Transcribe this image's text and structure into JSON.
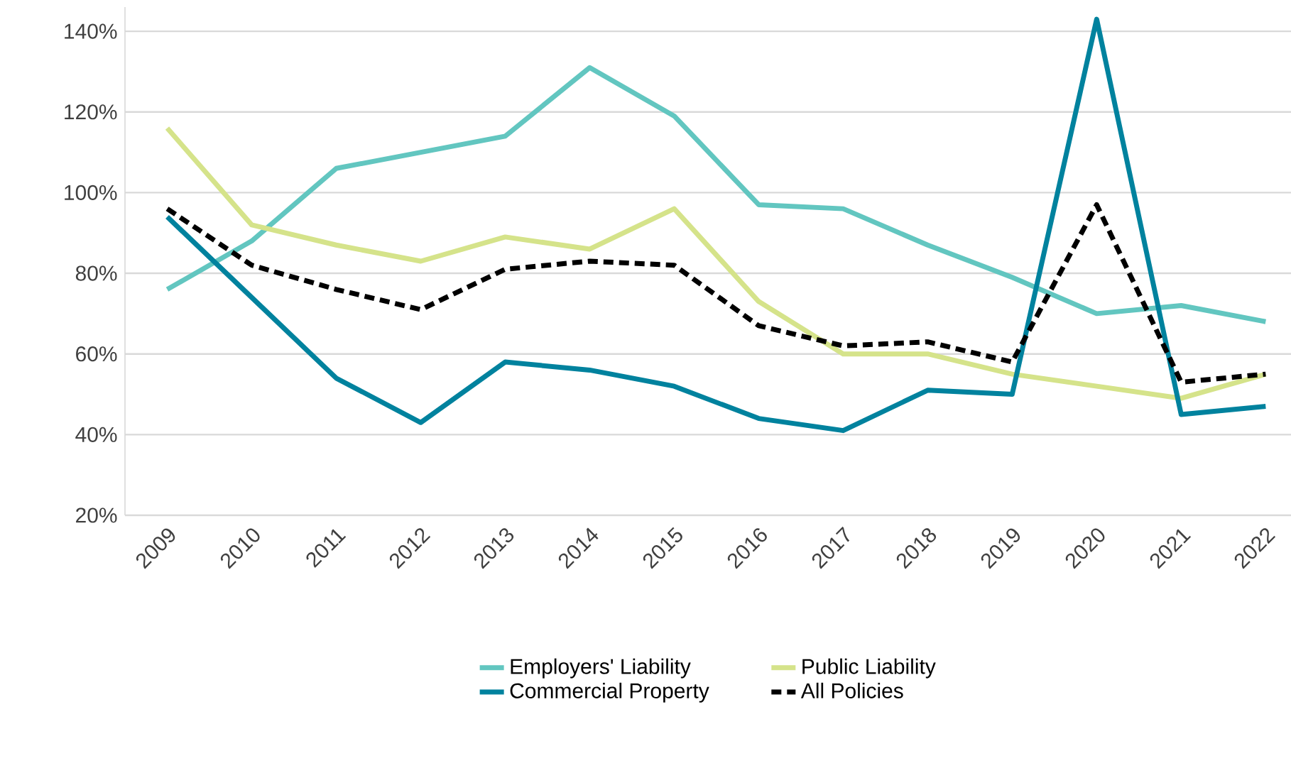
{
  "chart_data": {
    "type": "line",
    "categories": [
      "2009",
      "2010",
      "2011",
      "2012",
      "2013",
      "2014",
      "2015",
      "2016",
      "2017",
      "2018",
      "2019",
      "2020",
      "2021",
      "2022"
    ],
    "series": [
      {
        "name": "Employers' Liability",
        "color": "#62c6c0",
        "line_style": "solid",
        "values": [
          76,
          88,
          106,
          110,
          114,
          131,
          119,
          97,
          96,
          87,
          79,
          70,
          72,
          68
        ]
      },
      {
        "name": "Public Liability",
        "color": "#d5e38a",
        "line_style": "solid",
        "values": [
          116,
          92,
          87,
          83,
          89,
          86,
          96,
          73,
          60,
          60,
          55,
          52,
          49,
          55
        ]
      },
      {
        "name": "Commercial Property",
        "color": "#00829e",
        "line_style": "solid",
        "values": [
          94,
          74,
          54,
          43,
          58,
          56,
          52,
          44,
          41,
          51,
          50,
          143,
          45,
          47
        ]
      },
      {
        "name": "All Policies",
        "color": "#000000",
        "line_style": "dashed",
        "values": [
          96,
          82,
          76,
          71,
          81,
          83,
          82,
          67,
          62,
          63,
          58,
          97,
          53,
          55
        ]
      }
    ],
    "ylim": [
      20,
      146
    ],
    "yticks": [
      {
        "value": 20,
        "label": "20%"
      },
      {
        "value": 40,
        "label": "40%"
      },
      {
        "value": 60,
        "label": "60%"
      },
      {
        "value": 80,
        "label": "80%"
      },
      {
        "value": 100,
        "label": "100%"
      },
      {
        "value": 120,
        "label": "120%"
      },
      {
        "value": 140,
        "label": "140%"
      }
    ],
    "grid": "y",
    "legend": "bottom"
  }
}
